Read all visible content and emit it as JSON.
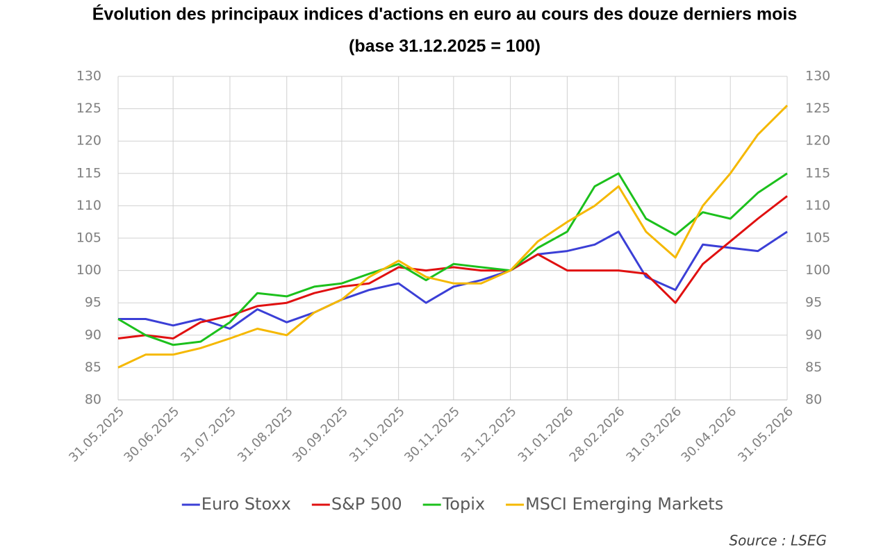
{
  "chart_data": {
    "type": "line",
    "title": "Évolution des principaux indices d'actions en euro au cours des douze derniers mois",
    "subtitle": "(base 31.12.2025 = 100)",
    "source": "Source : LSEG",
    "x": [
      "31.05.2025",
      "15.06.2025",
      "30.06.2025",
      "15.07.2025",
      "31.07.2025",
      "15.08.2025",
      "31.08.2025",
      "15.09.2025",
      "30.09.2025",
      "15.10.2025",
      "31.10.2025",
      "15.11.2025",
      "30.11.2025",
      "15.12.2025",
      "31.12.2025",
      "15.01.2026",
      "31.01.2026",
      "15.02.2026",
      "28.02.2026",
      "15.03.2026",
      "31.03.2026",
      "15.04.2026",
      "30.04.2026",
      "15.05.2026",
      "31.05.2026"
    ],
    "series": [
      {
        "name": "Euro Stoxx",
        "color": "#3b3fd6",
        "values": [
          92.5,
          92.5,
          91.5,
          92.5,
          91,
          94,
          92,
          93.5,
          95.5,
          97,
          98,
          95,
          97.5,
          98.5,
          100,
          102.5,
          103,
          104,
          106,
          99,
          97,
          104,
          103.5,
          103,
          106
        ]
      },
      {
        "name": "S&P 500",
        "color": "#e01010",
        "values": [
          89.5,
          90,
          89.5,
          92,
          93,
          94.5,
          95,
          96.5,
          97.5,
          98,
          100.5,
          100,
          100.5,
          100,
          100,
          102.5,
          100,
          100,
          100,
          99.5,
          95,
          101,
          104.5,
          108,
          111.5
        ]
      },
      {
        "name": "Topix",
        "color": "#1cc01c",
        "values": [
          92.5,
          90,
          88.5,
          89,
          92,
          96.5,
          96,
          97.5,
          98,
          99.5,
          101,
          98.5,
          101,
          100.5,
          100,
          103.5,
          106,
          113,
          115,
          108,
          105.5,
          109,
          108,
          112,
          115
        ]
      },
      {
        "name": "MSCI Emerging Markets",
        "color": "#f5b800",
        "values": [
          85,
          87,
          87,
          88,
          89.5,
          91,
          90,
          93.5,
          95.5,
          99,
          101.5,
          99,
          98,
          98,
          100,
          104.5,
          107.5,
          110,
          113,
          106,
          102,
          110,
          115,
          121,
          125.5
        ]
      }
    ],
    "xlim": [
      "31.05.2025",
      "31.05.2026"
    ],
    "xticks": [
      "31.05.2025",
      "30.06.2025",
      "31.07.2025",
      "31.08.2025",
      "30.09.2025",
      "31.10.2025",
      "30.11.2025",
      "31.12.2025",
      "31.01.2026",
      "28.02.2026",
      "31.03.2026",
      "30.04.2026",
      "31.05.2026"
    ],
    "ylim": [
      80,
      130
    ],
    "yticks": [
      80,
      85,
      90,
      95,
      100,
      105,
      110,
      115,
      120,
      125,
      130
    ],
    "y2lim": [
      80,
      130
    ],
    "y2ticks": [
      80,
      85,
      90,
      95,
      100,
      105,
      110,
      115,
      120,
      125,
      130
    ],
    "grid": true,
    "legend": "bottom"
  }
}
